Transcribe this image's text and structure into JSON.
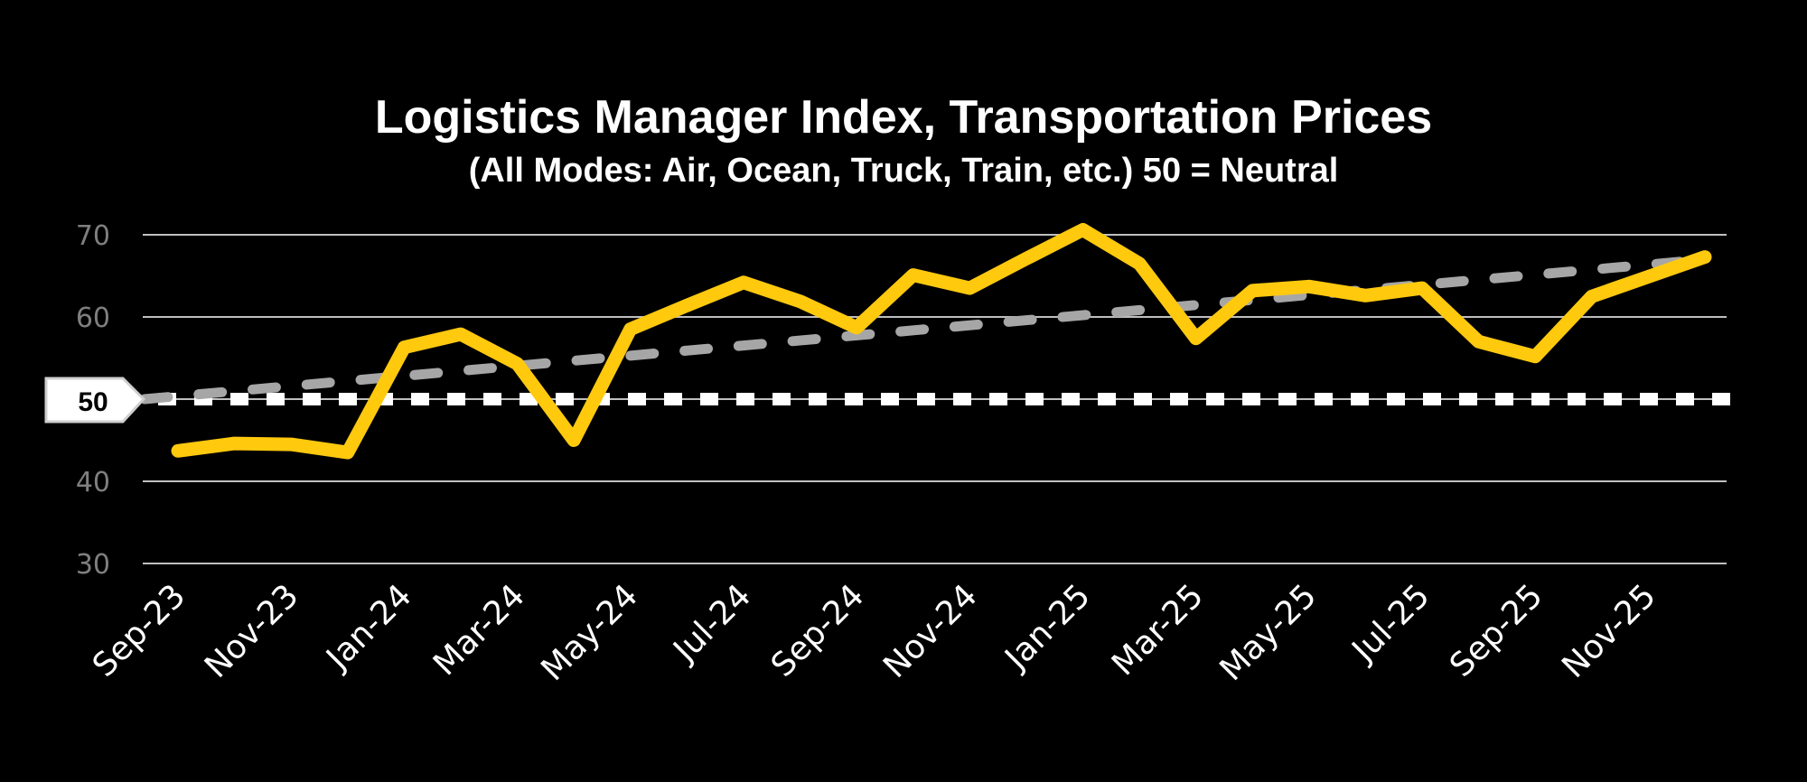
{
  "title": "Logistics Manager Index, Transportation Prices",
  "subtitle": "(All Modes: Air, Ocean, Truck, Train, etc.) 50 = Neutral",
  "neutral_label": "50",
  "colors": {
    "background": "#000000",
    "series": "#FFC90E",
    "trend": "#A6A6A6",
    "neutral_line": "#FFFFFF",
    "gridline": "#BFBFBF",
    "y_tick_label": "#7F7F7F",
    "x_tick_label": "#FFFFFF"
  },
  "chart_data": {
    "type": "line",
    "title": "Logistics Manager Index, Transportation Prices",
    "subtitle": "(All Modes: Air, Ocean, Truck, Train, etc.) 50 = Neutral",
    "xlabel": "",
    "ylabel": "",
    "ylim": [
      30,
      70
    ],
    "yticks": [
      30,
      40,
      50,
      60,
      70
    ],
    "grid": true,
    "legend": "none",
    "x": [
      "Sep-23",
      "Oct-23",
      "Nov-23",
      "Dec-23",
      "Jan-24",
      "Feb-24",
      "Mar-24",
      "Apr-24",
      "May-24",
      "Jun-24",
      "Jul-24",
      "Aug-24",
      "Sep-24",
      "Oct-24",
      "Nov-24",
      "Dec-24",
      "Jan-25",
      "Feb-25",
      "Mar-25",
      "Apr-25",
      "May-25",
      "Jun-25",
      "Jul-25",
      "Aug-25",
      "Sep-25",
      "Oct-25",
      "Nov-25",
      "Dec-25"
    ],
    "xtick_labels": [
      "Sep-23",
      "Nov-23",
      "Jan-24",
      "Mar-24",
      "May-24",
      "Jul-24",
      "Sep-24",
      "Nov-24",
      "Jan-25",
      "Mar-25",
      "May-25",
      "Jul-25",
      "Sep-25",
      "Nov-25"
    ],
    "series": [
      {
        "name": "Transportation Prices",
        "style": "solid",
        "color": "#FFC90E",
        "values": [
          43.7,
          44.6,
          44.5,
          43.5,
          56.3,
          57.9,
          54.3,
          45.0,
          58.5,
          61.4,
          64.2,
          61.9,
          58.7,
          65.1,
          63.5,
          67.1,
          70.6,
          66.5,
          57.4,
          63.2,
          63.7,
          62.6,
          63.5,
          57.0,
          55.2,
          62.5,
          64.9,
          67.3
        ]
      },
      {
        "name": "Linear trend",
        "style": "dashed",
        "color": "#A6A6A6",
        "start": 50.0,
        "end": 67.0
      },
      {
        "name": "Neutral (50)",
        "style": "dotted",
        "color": "#FFFFFF",
        "value": 50
      }
    ],
    "annotations": [
      {
        "text": "50",
        "type": "callout-label",
        "y": 50
      }
    ]
  }
}
